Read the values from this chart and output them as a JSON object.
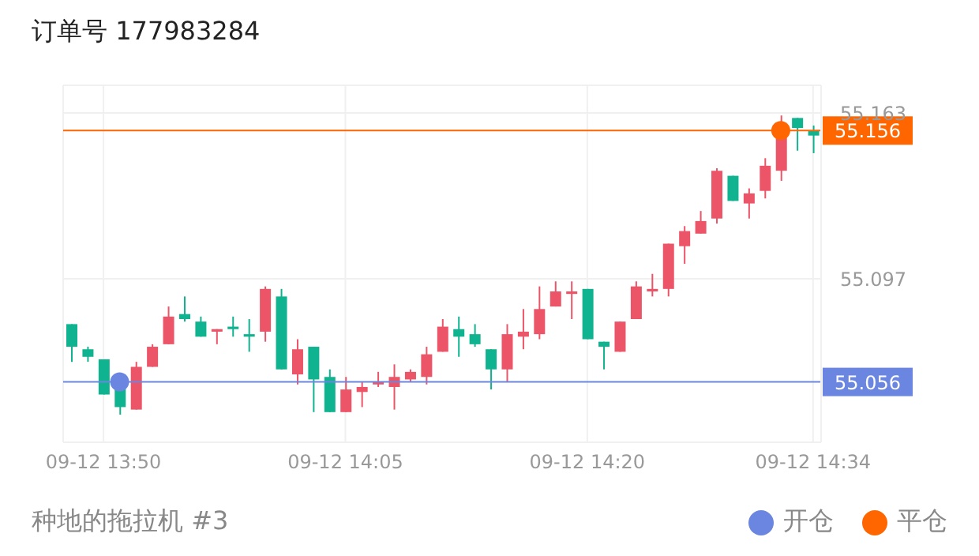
{
  "chart_data": {
    "type": "candlestick",
    "title": "订单号 177983284",
    "annotations": [
      "种地的拖拉机 #3"
    ],
    "categories": [
      null,
      null,
      "09-12 13:50",
      null,
      null,
      null,
      null,
      null,
      null,
      null,
      null,
      null,
      null,
      null,
      null,
      null,
      null,
      "09-12 14:05",
      null,
      null,
      null,
      null,
      null,
      null,
      null,
      null,
      null,
      null,
      null,
      null,
      null,
      null,
      "09-12 14:20",
      null,
      null,
      null,
      null,
      null,
      null,
      null,
      null,
      null,
      null,
      null,
      null,
      null,
      "09-12 14:34"
    ],
    "ohlc": [
      [
        55.079,
        55.079,
        55.064,
        55.07
      ],
      [
        55.069,
        55.07,
        55.064,
        55.066
      ],
      [
        55.065,
        55.065,
        55.051,
        55.051
      ],
      [
        55.059,
        55.059,
        55.043,
        55.046
      ],
      [
        55.045,
        55.064,
        55.045,
        55.062
      ],
      [
        55.062,
        55.071,
        55.062,
        55.07
      ],
      [
        55.071,
        55.086,
        55.071,
        55.082
      ],
      [
        55.083,
        55.09,
        55.08,
        55.081
      ],
      [
        55.08,
        55.082,
        55.074,
        55.074
      ],
      [
        55.076,
        55.077,
        55.071,
        55.077
      ],
      [
        55.078,
        55.082,
        55.074,
        55.077
      ],
      [
        55.075,
        55.081,
        55.068,
        55.074
      ],
      [
        55.076,
        55.094,
        55.072,
        55.093
      ],
      [
        55.09,
        55.093,
        55.061,
        55.061
      ],
      [
        55.059,
        55.073,
        55.055,
        55.069
      ],
      [
        55.07,
        55.07,
        55.044,
        55.057
      ],
      [
        55.058,
        55.061,
        55.044,
        55.044
      ],
      [
        55.044,
        55.058,
        55.044,
        55.053
      ],
      [
        55.052,
        55.056,
        55.046,
        55.054
      ],
      [
        55.055,
        55.06,
        55.054,
        55.056
      ],
      [
        55.054,
        55.063,
        55.045,
        55.058
      ],
      [
        55.057,
        55.061,
        55.056,
        55.06
      ],
      [
        55.058,
        55.07,
        55.055,
        55.067
      ],
      [
        55.068,
        55.081,
        55.068,
        55.078
      ],
      [
        55.077,
        55.082,
        55.066,
        55.074
      ],
      [
        55.075,
        55.079,
        55.07,
        55.071
      ],
      [
        55.069,
        55.069,
        55.053,
        55.061
      ],
      [
        55.061,
        55.079,
        55.056,
        55.075
      ],
      [
        55.074,
        55.085,
        55.069,
        55.076
      ],
      [
        55.075,
        55.094,
        55.073,
        55.085
      ],
      [
        55.086,
        55.096,
        55.086,
        55.092
      ],
      [
        55.091,
        55.096,
        55.081,
        55.092
      ],
      [
        55.093,
        55.093,
        55.073,
        55.073
      ],
      [
        55.072,
        55.072,
        55.061,
        55.07
      ],
      [
        55.068,
        55.08,
        55.068,
        55.08
      ],
      [
        55.081,
        55.096,
        55.081,
        55.094
      ],
      [
        55.092,
        55.099,
        55.09,
        55.093
      ],
      [
        55.093,
        55.111,
        55.09,
        55.111
      ],
      [
        55.11,
        55.118,
        55.103,
        55.116
      ],
      [
        55.115,
        55.124,
        55.115,
        55.12
      ],
      [
        55.121,
        55.141,
        55.119,
        55.14
      ],
      [
        55.138,
        55.138,
        55.128,
        55.128
      ],
      [
        55.127,
        55.133,
        55.121,
        55.131
      ],
      [
        55.132,
        55.145,
        55.129,
        55.142
      ],
      [
        55.14,
        55.162,
        55.136,
        55.157
      ],
      [
        55.161,
        55.161,
        55.148,
        55.157
      ],
      [
        55.156,
        55.158,
        55.147,
        55.154
      ]
    ],
    "colors": [
      "#10b38f",
      "#10b38f",
      "#10b38f",
      "#10b38f",
      "#ec5468",
      "#ec5468",
      "#ec5468",
      "#10b38f",
      "#10b38f",
      "#ec5468",
      "#10b38f",
      "#10b38f",
      "#ec5468",
      "#10b38f",
      "#ec5468",
      "#10b38f",
      "#10b38f",
      "#ec5468",
      "#ec5468",
      "#ec5468",
      "#ec5468",
      "#ec5468",
      "#ec5468",
      "#ec5468",
      "#10b38f",
      "#10b38f",
      "#10b38f",
      "#ec5468",
      "#ec5468",
      "#ec5468",
      "#ec5468",
      "#ec5468",
      "#10b38f",
      "#10b38f",
      "#ec5468",
      "#ec5468",
      "#ec5468",
      "#ec5468",
      "#ec5468",
      "#ec5468",
      "#ec5468",
      "#10b38f",
      "#ec5468",
      "#ec5468",
      "#ec5468",
      "#10b38f",
      "#10b38f"
    ],
    "series": [
      {
        "name": "开仓",
        "type": "scatter",
        "color": "#6b86e0",
        "values": [
          null,
          null,
          null,
          55.056,
          null,
          null,
          null,
          null,
          null,
          null,
          null,
          null,
          null,
          null,
          null,
          null,
          null,
          null,
          null,
          null,
          null,
          null,
          null,
          null,
          null,
          null,
          null,
          null,
          null,
          null,
          null,
          null,
          null,
          null,
          null,
          null,
          null,
          null,
          null,
          null,
          null,
          null,
          null,
          null,
          null,
          null,
          null
        ]
      },
      {
        "name": "平仓",
        "type": "scatter",
        "color": "#ff6600",
        "values": [
          null,
          null,
          null,
          null,
          null,
          null,
          null,
          null,
          null,
          null,
          null,
          null,
          null,
          null,
          null,
          null,
          null,
          null,
          null,
          null,
          null,
          null,
          null,
          null,
          null,
          null,
          null,
          null,
          null,
          null,
          null,
          null,
          null,
          null,
          null,
          null,
          null,
          null,
          null,
          null,
          null,
          null,
          null,
          null,
          55.156,
          null,
          null
        ]
      }
    ],
    "marker": "circle",
    "ylim": [
      55.032,
      55.174
    ],
    "yticks": [
      55.163,
      55.097
    ],
    "ref_lines": [
      {
        "axis": "y",
        "value": 55.156,
        "label": "55.156",
        "color": "#ff6600"
      },
      {
        "axis": "y",
        "value": 55.056,
        "label": "55.056",
        "color": "#6b86e0"
      }
    ],
    "grid": true,
    "legend": "bottom right"
  }
}
